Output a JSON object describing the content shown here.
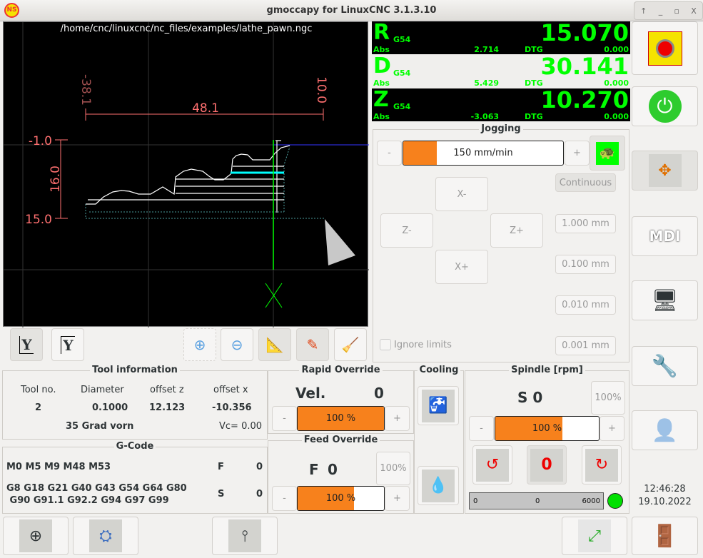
{
  "window": {
    "title": "gmoccapy for LinuxCNC  3.1.3.10",
    "logo": "NS",
    "controls": [
      "↑",
      "_",
      "▫",
      "X"
    ]
  },
  "graphics": {
    "file_path": "/home/cnc/linuxcnc/nc_files/examples/lathe_pawn.ngc",
    "dim_top": "48.1",
    "dim_left_min": "-38.1",
    "dim_right": "10.0",
    "dim_y_top": "-1.0",
    "dim_y_bottom": "15.0",
    "dim_y_span": "16.0"
  },
  "view_toolbar": {
    "buttons": [
      "lathe-view-y-icon",
      "lathe-view-back-y-icon",
      "zoom-in-icon",
      "zoom-out-icon",
      "measure-dimensions-icon",
      "edit-pencil-icon",
      "clear-plot-broom-icon"
    ],
    "y_label": "Y"
  },
  "dro": [
    {
      "axis": "R",
      "system": "G54",
      "value": "15.070",
      "abs_label": "Abs",
      "abs": "2.714",
      "dtg_label": "DTG",
      "dtg": "0.000"
    },
    {
      "axis": "D",
      "system": "G54",
      "value": "30.141",
      "abs_label": "Abs",
      "abs": "5.429",
      "dtg_label": "DTG",
      "dtg": "0.000"
    },
    {
      "axis": "Z",
      "system": "G54",
      "value": "10.270",
      "abs_label": "Abs",
      "abs": "-3.063",
      "dtg_label": "DTG",
      "dtg": "0.000"
    }
  ],
  "jogging": {
    "title": "Jogging",
    "minus": "-",
    "plus": "+",
    "velocity": "150 mm/min",
    "velocity_fraction": 0.21,
    "turtle_icon": "turtle-icon",
    "buttons": {
      "x_minus": "X-",
      "x_plus": "X+",
      "z_minus": "Z-",
      "z_plus": "Z+"
    },
    "increments": [
      "Continuous",
      "1.000 mm",
      "0.100 mm",
      "0.010 mm",
      "0.001 mm"
    ],
    "ignore_limits": "Ignore limits",
    "ignore_limits_checked": false
  },
  "sidebar": {
    "buttons": [
      "emergency-stop-icon",
      "power-icon",
      "jog-arrows-icon",
      "mdi-icon",
      "auto-mode-icon",
      "settings-tools-icon",
      "user-tabs-icon"
    ],
    "mdi_label": "MDI",
    "time": "12:46:28",
    "date": "19.10.2022"
  },
  "tool_info": {
    "title": "Tool information",
    "headers": [
      "Tool no.",
      "Diameter",
      "offset z",
      "offset x"
    ],
    "values": [
      "2",
      "0.1000",
      "12.123",
      "-10.356"
    ],
    "description": "35 Grad vorn",
    "vc": "Vc= 0.00"
  },
  "gcode": {
    "title": "G-Code",
    "mcodes": "M0 M5 M9 M48 M53",
    "gcodes_line1": "G8 G18 G21 G40 G43 G54 G64 G80",
    "gcodes_line2": " G90 G91.1 G92.2 G94 G97 G99",
    "f_label": "F",
    "f_value": "0",
    "s_label": "S",
    "s_value": "0"
  },
  "rapid_override": {
    "title": "Rapid Override",
    "vel_label": "Vel.",
    "vel_value": "0",
    "minus": "-",
    "plus": "+",
    "value": "100 %",
    "fraction": 1.0
  },
  "feed_override": {
    "title": "Feed Override",
    "f_label": "F",
    "f_value": "0",
    "reset": "100%",
    "minus": "-",
    "plus": "+",
    "value": "100 %",
    "fraction": 0.65
  },
  "cooling": {
    "title": "Cooling",
    "buttons": [
      "flood-coolant-icon",
      "mist-coolant-icon"
    ]
  },
  "spindle": {
    "title": "Spindle [rpm]",
    "speed": "S 0",
    "reset": "100%",
    "minus": "-",
    "plus": "+",
    "value": "100 %",
    "fraction": 0.65,
    "buttons": [
      "spindle-ccw-icon",
      "spindle-stop-icon",
      "spindle-cw-icon"
    ],
    "stop_label": "0",
    "scale": [
      "0",
      "0",
      "6000"
    ],
    "at_speed_color": "#00e000"
  },
  "bottom_bar": {
    "buttons": [
      "touch-off-icon",
      "tool-setter-icon",
      "tool-change-icon",
      "fullscreen-icon",
      "exit-door-icon"
    ]
  },
  "colors": {
    "accent": "#f7811c",
    "dro_green": "#00ff00",
    "dim_red": "#ff7070"
  }
}
